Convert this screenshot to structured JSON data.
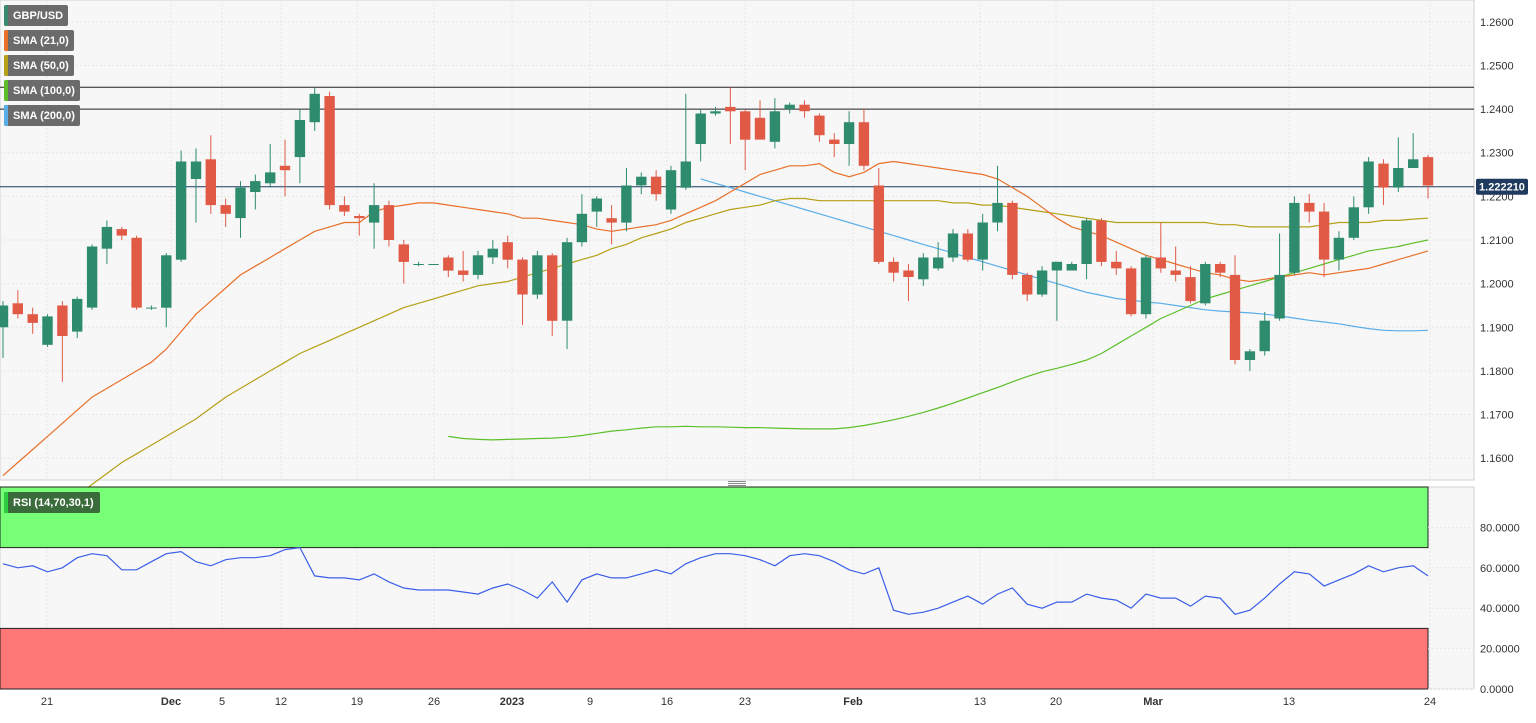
{
  "chart_data": [
    {
      "type": "candlestick",
      "symbol": "GBP/USD",
      "legend": [
        {
          "label": "GBP/USD",
          "color": "#3a8a6e"
        },
        {
          "label": "SMA (21,0)",
          "color": "#e8702a"
        },
        {
          "label": "SMA (50,0)",
          "color": "#b5a017"
        },
        {
          "label": "SMA (100,0)",
          "color": "#5cbf2a"
        },
        {
          "label": "SMA (200,0)",
          "color": "#5aaee8"
        }
      ],
      "ylim": [
        1.155,
        1.265
      ],
      "yticks": [
        "1.2600",
        "1.2500",
        "1.2400",
        "1.2300",
        "1.2200",
        "1.2100",
        "1.2000",
        "1.1900",
        "1.1800",
        "1.1700",
        "1.1600"
      ],
      "xlabels": [
        "21",
        "Dec",
        "5",
        "12",
        "19",
        "26",
        "2023",
        "9",
        "16",
        "23",
        "Feb",
        "13",
        "20",
        "Mar",
        "13",
        "24"
      ],
      "current_price": "1.222210",
      "horizontal_lines": [
        1.245,
        1.24,
        1.2222
      ],
      "up_color": "#2e8b6e",
      "down_color": "#e05a46",
      "candles": [
        [
          1.19,
          1.195,
          1.183,
          1.196
        ],
        [
          1.1955,
          1.193,
          1.192,
          1.1985
        ],
        [
          1.193,
          1.191,
          1.1885,
          1.1945
        ],
        [
          1.186,
          1.1925,
          1.1855,
          1.193
        ],
        [
          1.195,
          1.188,
          1.1775,
          1.196
        ],
        [
          1.189,
          1.1965,
          1.1875,
          1.197
        ],
        [
          1.1945,
          1.2085,
          1.194,
          1.209
        ],
        [
          1.208,
          1.213,
          1.2045,
          1.2145
        ],
        [
          1.2125,
          1.211,
          1.21,
          1.213
        ],
        [
          1.2105,
          1.1945,
          1.194,
          1.211
        ],
        [
          1.1945,
          1.1945,
          1.194,
          1.195
        ],
        [
          1.1945,
          1.2065,
          1.19,
          1.207
        ],
        [
          1.2055,
          1.228,
          1.205,
          1.2305
        ],
        [
          1.224,
          1.228,
          1.214,
          1.231
        ],
        [
          1.2285,
          1.218,
          1.216,
          1.234
        ],
        [
          1.218,
          1.216,
          1.213,
          1.2195
        ],
        [
          1.215,
          1.222,
          1.2105,
          1.2235
        ],
        [
          1.221,
          1.2235,
          1.217,
          1.225
        ],
        [
          1.223,
          1.2255,
          1.222,
          1.232
        ],
        [
          1.227,
          1.226,
          1.22,
          1.233
        ],
        [
          1.229,
          1.2375,
          1.223,
          1.24
        ],
        [
          1.237,
          1.2435,
          1.235,
          1.245
        ],
        [
          1.243,
          1.218,
          1.217,
          1.244
        ],
        [
          1.218,
          1.2165,
          1.2155,
          1.22
        ],
        [
          1.2155,
          1.215,
          1.211,
          1.216
        ],
        [
          1.214,
          1.218,
          1.208,
          1.223
        ],
        [
          1.218,
          1.21,
          1.2085,
          1.219
        ],
        [
          1.209,
          1.205,
          1.2,
          1.21
        ],
        [
          1.2045,
          1.2045,
          1.204,
          1.205
        ],
        [
          1.2045,
          1.2045,
          1.2045,
          1.2045
        ],
        [
          1.206,
          1.203,
          1.2015,
          1.2065
        ],
        [
          1.203,
          1.202,
          1.2005,
          1.2075
        ],
        [
          1.202,
          1.2065,
          1.201,
          1.2075
        ],
        [
          1.206,
          1.208,
          1.2045,
          1.21
        ],
        [
          1.2095,
          1.2055,
          1.2035,
          1.211
        ],
        [
          1.2055,
          1.1975,
          1.1905,
          1.206
        ],
        [
          1.1975,
          1.2065,
          1.1965,
          1.2075
        ],
        [
          1.2065,
          1.1915,
          1.188,
          1.207
        ],
        [
          1.1915,
          1.2095,
          1.185,
          1.2105
        ],
        [
          1.2095,
          1.216,
          1.2085,
          1.2205
        ],
        [
          1.2165,
          1.2195,
          1.213,
          1.22
        ],
        [
          1.215,
          1.214,
          1.209,
          1.218
        ],
        [
          1.214,
          1.2225,
          1.212,
          1.2265
        ],
        [
          1.2225,
          1.2245,
          1.2205,
          1.2255
        ],
        [
          1.2245,
          1.2205,
          1.219,
          1.226
        ],
        [
          1.217,
          1.226,
          1.216,
          1.227
        ],
        [
          1.222,
          1.228,
          1.2215,
          1.2435
        ],
        [
          1.232,
          1.239,
          1.228,
          1.24
        ],
        [
          1.239,
          1.2395,
          1.2385,
          1.2405
        ],
        [
          1.2405,
          1.2395,
          1.232,
          1.245
        ],
        [
          1.2395,
          1.233,
          1.226,
          1.24
        ],
        [
          1.238,
          1.233,
          1.233,
          1.242
        ],
        [
          1.2325,
          1.2395,
          1.231,
          1.2425
        ],
        [
          1.24,
          1.241,
          1.239,
          1.2415
        ],
        [
          1.241,
          1.2395,
          1.238,
          1.242
        ],
        [
          1.2385,
          1.234,
          1.2325,
          1.239
        ],
        [
          1.233,
          1.232,
          1.229,
          1.2345
        ],
        [
          1.232,
          1.237,
          1.227,
          1.2395
        ],
        [
          1.237,
          1.227,
          1.226,
          1.24
        ],
        [
          1.2225,
          1.205,
          1.2045,
          1.2265
        ],
        [
          1.205,
          1.2025,
          1.2005,
          1.206
        ],
        [
          1.203,
          1.2015,
          1.196,
          1.2045
        ],
        [
          1.201,
          1.206,
          1.1995,
          1.207
        ],
        [
          1.2035,
          1.206,
          1.203,
          1.2095
        ],
        [
          1.206,
          1.2115,
          1.205,
          1.2125
        ],
        [
          1.2115,
          1.2055,
          1.205,
          1.2125
        ],
        [
          1.2055,
          1.214,
          1.203,
          1.216
        ],
        [
          1.214,
          1.2185,
          1.212,
          1.227
        ],
        [
          1.2185,
          1.202,
          1.201,
          1.219
        ],
        [
          1.202,
          1.1975,
          1.196,
          1.2025
        ],
        [
          1.1975,
          1.203,
          1.197,
          1.204
        ],
        [
          1.203,
          1.205,
          1.1915,
          1.204
        ],
        [
          1.203,
          1.2045,
          1.203,
          1.205
        ],
        [
          1.2045,
          1.2145,
          1.201,
          1.215
        ],
        [
          1.2145,
          1.205,
          1.204,
          1.215
        ],
        [
          1.205,
          1.2035,
          1.202,
          1.2075
        ],
        [
          1.2035,
          1.193,
          1.1925,
          1.204
        ],
        [
          1.193,
          1.206,
          1.192,
          1.2065
        ],
        [
          1.206,
          1.2035,
          1.2025,
          1.214
        ],
        [
          1.203,
          1.202,
          1.2005,
          1.2085
        ],
        [
          1.2015,
          1.196,
          1.1955,
          1.204
        ],
        [
          1.1955,
          1.2045,
          1.195,
          1.205
        ],
        [
          1.2045,
          1.2025,
          1.2015,
          1.205
        ],
        [
          1.202,
          1.1825,
          1.1815,
          1.2065
        ],
        [
          1.1825,
          1.1845,
          1.18,
          1.185
        ],
        [
          1.1845,
          1.1915,
          1.1835,
          1.1935
        ],
        [
          1.192,
          1.202,
          1.1915,
          1.2115
        ],
        [
          1.2025,
          1.2185,
          1.202,
          1.22
        ],
        [
          1.2185,
          1.2165,
          1.214,
          1.2205
        ],
        [
          1.2165,
          1.2055,
          1.2015,
          1.2185
        ],
        [
          1.2055,
          1.2105,
          1.203,
          1.212
        ],
        [
          1.2105,
          1.2175,
          1.21,
          1.22
        ],
        [
          1.2175,
          1.228,
          1.216,
          1.229
        ],
        [
          1.2275,
          1.222,
          1.218,
          1.2285
        ],
        [
          1.222,
          1.2265,
          1.221,
          1.2335
        ],
        [
          1.2265,
          1.2285,
          1.227,
          1.2345
        ],
        [
          1.229,
          1.2225,
          1.2195,
          1.2295
        ]
      ],
      "sma21": [
        1.156,
        1.159,
        1.162,
        1.165,
        1.168,
        1.171,
        1.174,
        1.176,
        1.178,
        1.18,
        1.182,
        1.185,
        1.189,
        1.193,
        1.196,
        1.199,
        1.202,
        1.204,
        1.206,
        1.208,
        1.21,
        1.212,
        1.213,
        1.214,
        1.214,
        1.2165,
        1.2175,
        1.218,
        1.2185,
        1.2185,
        1.218,
        1.2175,
        1.217,
        1.2165,
        1.216,
        1.215,
        1.215,
        1.2145,
        1.214,
        1.2135,
        1.2125,
        1.212,
        1.2125,
        1.213,
        1.2135,
        1.2145,
        1.216,
        1.2175,
        1.219,
        1.221,
        1.223,
        1.225,
        1.226,
        1.227,
        1.227,
        1.2275,
        1.2255,
        1.2245,
        1.2255,
        1.2275,
        1.228,
        1.2275,
        1.227,
        1.2265,
        1.226,
        1.2255,
        1.225,
        1.224,
        1.222,
        1.22,
        1.2175,
        1.215,
        1.213,
        1.212,
        1.211,
        1.2095,
        1.208,
        1.2065,
        1.2055,
        1.2045,
        1.2035,
        1.2025,
        1.202,
        1.201,
        1.2005,
        1.201,
        1.2015,
        1.202,
        1.2025,
        1.202,
        1.2025,
        1.203,
        1.2035,
        1.2045,
        1.2055,
        1.2065,
        1.2075
      ],
      "sma50": [
        1.145,
        1.147,
        1.149,
        1.1515,
        1.154,
        1.1565,
        1.159,
        1.161,
        1.163,
        1.165,
        1.167,
        1.169,
        1.1715,
        1.174,
        1.176,
        1.178,
        1.18,
        1.182,
        1.184,
        1.1855,
        1.187,
        1.1885,
        1.19,
        1.1915,
        1.193,
        1.1945,
        1.1955,
        1.1965,
        1.1975,
        1.1985,
        1.1995,
        1.2,
        1.2005,
        1.2015,
        1.2025,
        1.2035,
        1.2045,
        1.2055,
        1.2065,
        1.208,
        1.209,
        1.2105,
        1.2115,
        1.2125,
        1.214,
        1.215,
        1.216,
        1.217,
        1.2175,
        1.218,
        1.219,
        1.2195,
        1.2195,
        1.219,
        1.219,
        1.219,
        1.219,
        1.219,
        1.219,
        1.219,
        1.219,
        1.219,
        1.2185,
        1.2185,
        1.218,
        1.218,
        1.2175,
        1.217,
        1.2165,
        1.216,
        1.2155,
        1.215,
        1.2145,
        1.214,
        1.214,
        1.214,
        1.214,
        1.214,
        1.214,
        1.214,
        1.2135,
        1.2135,
        1.213,
        1.213,
        1.213,
        1.213,
        1.213,
        1.2135,
        1.214,
        1.214,
        1.214,
        1.2145,
        1.2145,
        1.2148,
        1.215
      ],
      "sma100": [
        1.165,
        1.1645,
        1.1643,
        1.1642,
        1.1643,
        1.1644,
        1.1645,
        1.1646,
        1.1648,
        1.1652,
        1.1657,
        1.1662,
        1.1665,
        1.1669,
        1.1672,
        1.1672,
        1.1673,
        1.1672,
        1.1672,
        1.1671,
        1.167,
        1.167,
        1.1669,
        1.1668,
        1.1667,
        1.1667,
        1.1667,
        1.167,
        1.1675,
        1.1681,
        1.1688,
        1.1696,
        1.1705,
        1.1715,
        1.1726,
        1.1738,
        1.175,
        1.1762,
        1.1775,
        1.1787,
        1.1798,
        1.1806,
        1.1815,
        1.1825,
        1.184,
        1.186,
        1.188,
        1.19,
        1.192,
        1.1935,
        1.195,
        1.1965,
        1.1975,
        1.1985,
        1.1995,
        1.2005,
        1.2015,
        1.2025,
        1.2035,
        1.2045,
        1.2055,
        1.2065,
        1.2075,
        1.208,
        1.2085,
        1.2093,
        1.21
      ],
      "sma200": [
        1.224,
        1.223,
        1.222,
        1.221,
        1.22,
        1.219,
        1.218,
        1.217,
        1.216,
        1.215,
        1.214,
        1.213,
        1.212,
        1.211,
        1.21,
        1.209,
        1.208,
        1.207,
        1.206,
        1.205,
        1.204,
        1.203,
        1.202,
        1.201,
        1.2,
        1.199,
        1.198,
        1.1973,
        1.1966,
        1.1962,
        1.1958,
        1.1955,
        1.195,
        1.1945,
        1.194,
        1.1937,
        1.1935,
        1.1933,
        1.193,
        1.1926,
        1.1921,
        1.1916,
        1.1912,
        1.1908,
        1.1902,
        1.1897,
        1.1893,
        1.1892,
        1.1892,
        1.1893
      ]
    },
    {
      "type": "line",
      "label": "RSI (14,70,30,1)",
      "ylim": [
        0,
        100
      ],
      "yticks": [
        "80.0000",
        "60.0000",
        "40.0000",
        "20.0000",
        "0.0000"
      ],
      "overbought": 70,
      "oversold": 30,
      "values": [
        62,
        60,
        61,
        58,
        60,
        65,
        67,
        66,
        59,
        59,
        63,
        67,
        68,
        63,
        61,
        64,
        65,
        65,
        66,
        69,
        70,
        56,
        55,
        55,
        54,
        57,
        53,
        50,
        49,
        49,
        49,
        48,
        47,
        50,
        52,
        49,
        45,
        53,
        43,
        54,
        57,
        55,
        55,
        57,
        59,
        57,
        62,
        65,
        67,
        67,
        66,
        64,
        61,
        66,
        67,
        66,
        63,
        59,
        57,
        60,
        39,
        37,
        38,
        40,
        43,
        46,
        42,
        47,
        50,
        42,
        40,
        43,
        43,
        47,
        45,
        44,
        40,
        47,
        45,
        45,
        41,
        46,
        45,
        37,
        39,
        45,
        52,
        58,
        57,
        51,
        54,
        57,
        61,
        58,
        60,
        61,
        56
      ]
    }
  ]
}
